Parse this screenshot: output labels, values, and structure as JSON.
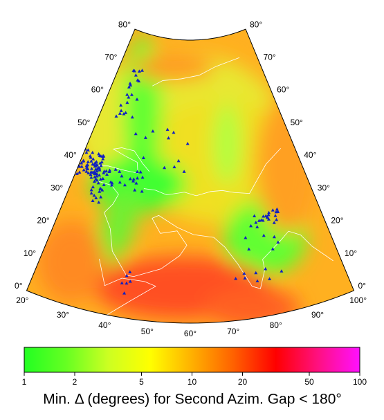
{
  "map": {
    "type": "map",
    "projection": "conic",
    "lonlim": [
      20,
      100
    ],
    "latlim": [
      0,
      80
    ],
    "lat_ticks": [
      {
        "value": 0,
        "label": "0°"
      },
      {
        "value": 10,
        "label": "10°"
      },
      {
        "value": 20,
        "label": "20°"
      },
      {
        "value": 30,
        "label": "30°"
      },
      {
        "value": 40,
        "label": "40°"
      },
      {
        "value": 50,
        "label": "50°"
      },
      {
        "value": 60,
        "label": "60°"
      },
      {
        "value": 70,
        "label": "70°"
      },
      {
        "value": 80,
        "label": "80°"
      }
    ],
    "lon_ticks": [
      {
        "value": 20,
        "label": "20°"
      },
      {
        "value": 30,
        "label": "30°"
      },
      {
        "value": 40,
        "label": "40°"
      },
      {
        "value": 50,
        "label": "50°"
      },
      {
        "value": 60,
        "label": "60°"
      },
      {
        "value": 70,
        "label": "70°"
      },
      {
        "value": 80,
        "label": "80°"
      },
      {
        "value": 90,
        "label": "90°"
      },
      {
        "value": 100,
        "label": "100°"
      }
    ]
  },
  "colorbar": {
    "scale": "log",
    "lim": [
      1,
      100
    ],
    "ticks": [
      1,
      2,
      5,
      10,
      20,
      50,
      100
    ],
    "colors": [
      "#22ff22",
      "#66ff22",
      "#ccff22",
      "#ffff00",
      "#ffb000",
      "#ff6000",
      "#ff0000",
      "#ff1080",
      "#ff10ff"
    ],
    "label": "Min. Δ (degrees) for Second Azim. Gap < 180°"
  }
}
